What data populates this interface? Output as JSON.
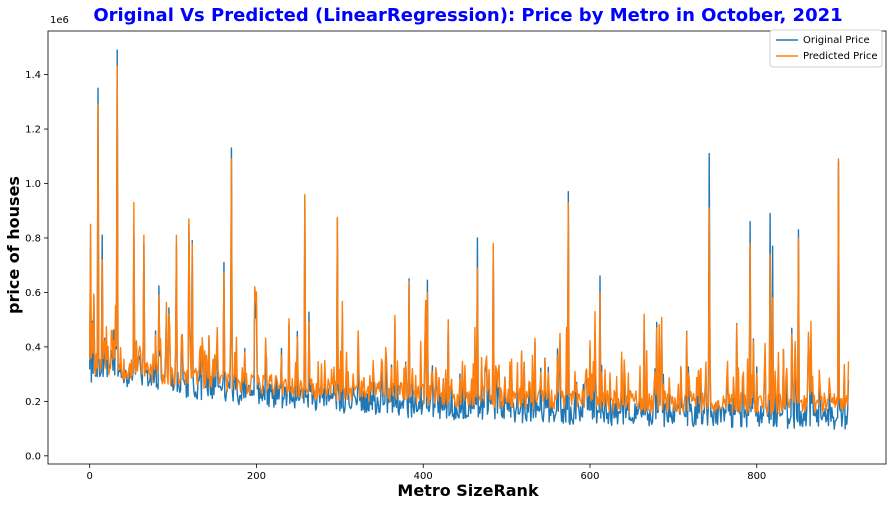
{
  "colors": {
    "title": "#0000ff",
    "original": "#1f77b4",
    "predicted": "#ff7f0e",
    "axes": "#000000",
    "background": "#ffffff"
  },
  "chart_data": {
    "type": "line",
    "title": "Original Vs Predicted (LinearRegression): Price by Metro in October, 2021",
    "xlabel": "Metro SizeRank",
    "ylabel": "price of houses",
    "y_offset_label": "1e6",
    "xlim": [
      -50,
      955
    ],
    "ylim": [
      -30000,
      1560000
    ],
    "x_ticks": [
      0,
      200,
      400,
      600,
      800
    ],
    "x_tick_labels": [
      "0",
      "200",
      "400",
      "600",
      "800"
    ],
    "y_ticks": [
      0,
      200000,
      400000,
      600000,
      800000,
      1000000,
      1200000,
      1400000
    ],
    "y_tick_labels": [
      "0.0",
      "0.2",
      "0.4",
      "0.6",
      "0.8",
      "1.0",
      "1.2",
      "1.4"
    ],
    "legend_position": "top-right",
    "grid": false,
    "x_start": 0,
    "x_end": 910,
    "spikes": [
      {
        "x": 1,
        "original": 760000,
        "predicted": 850000
      },
      {
        "x": 10,
        "original": 1350000,
        "predicted": 1290000
      },
      {
        "x": 15,
        "original": 810000,
        "predicted": 720000
      },
      {
        "x": 33,
        "original": 1490000,
        "predicted": 1430000
      },
      {
        "x": 53,
        "original": 810000,
        "predicted": 930000
      },
      {
        "x": 65,
        "original": 780000,
        "predicted": 810000
      },
      {
        "x": 104,
        "original": 770000,
        "predicted": 810000
      },
      {
        "x": 119,
        "original": 850000,
        "predicted": 870000
      },
      {
        "x": 123,
        "original": 790000,
        "predicted": 780000
      },
      {
        "x": 161,
        "original": 710000,
        "predicted": 670000
      },
      {
        "x": 170,
        "original": 1130000,
        "predicted": 1090000
      },
      {
        "x": 198,
        "original": 620000,
        "predicted": 620000
      },
      {
        "x": 258,
        "original": 950000,
        "predicted": 960000
      },
      {
        "x": 297,
        "original": 870000,
        "predicted": 875000
      },
      {
        "x": 383,
        "original": 650000,
        "predicted": 640000
      },
      {
        "x": 405,
        "original": 645000,
        "predicted": 600000
      },
      {
        "x": 465,
        "original": 800000,
        "predicted": 690000
      },
      {
        "x": 484,
        "original": 770000,
        "predicted": 780000
      },
      {
        "x": 574,
        "original": 970000,
        "predicted": 930000
      },
      {
        "x": 612,
        "original": 660000,
        "predicted": 600000
      },
      {
        "x": 680,
        "original": 490000,
        "predicted": 470000
      },
      {
        "x": 743,
        "original": 1110000,
        "predicted": 910000
      },
      {
        "x": 792,
        "original": 860000,
        "predicted": 780000
      },
      {
        "x": 816,
        "original": 890000,
        "predicted": 740000
      },
      {
        "x": 819,
        "original": 770000,
        "predicted": 580000
      },
      {
        "x": 850,
        "original": 830000,
        "predicted": 800000
      },
      {
        "x": 898,
        "original": 1080000,
        "predicted": 1090000
      }
    ],
    "series": [
      {
        "name": "Original Price",
        "color": "#1f77b4",
        "baseline_start": 300000,
        "baseline_end": 120000,
        "noise_amplitude": 90000
      },
      {
        "name": "Predicted Price",
        "color": "#ff7f0e",
        "baseline_start": 330000,
        "baseline_end": 170000,
        "noise_amplitude": 80000
      }
    ]
  }
}
